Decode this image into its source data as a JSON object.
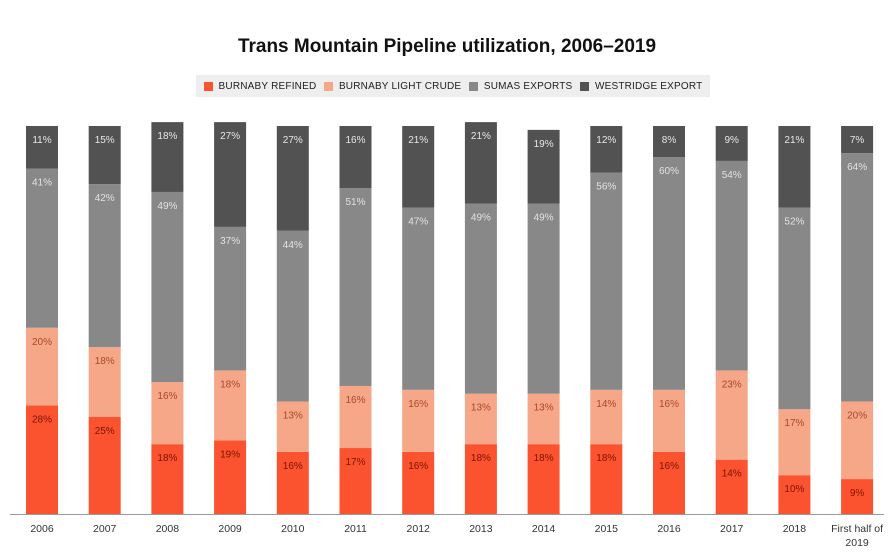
{
  "chart_data": {
    "type": "bar",
    "stacked": true,
    "title": "Trans Mountain Pipeline utilization, 2006–2019",
    "legend_position": "top-center",
    "grid": false,
    "ylim": [
      0,
      100
    ],
    "categories": [
      "2006",
      "2007",
      "2008",
      "2009",
      "2010",
      "2011",
      "2012",
      "2013",
      "2014",
      "2015",
      "2016",
      "2017",
      "2018",
      "First half of 2019"
    ],
    "series": [
      {
        "name": "BURNABY REFINED",
        "color": "#fb5230",
        "values": [
          28,
          25,
          18,
          19,
          16,
          17,
          16,
          18,
          18,
          18,
          16,
          14,
          10,
          9
        ]
      },
      {
        "name": "BURNABY LIGHT CRUDE",
        "color": "#f6a788",
        "values": [
          20,
          18,
          16,
          18,
          13,
          16,
          16,
          13,
          13,
          14,
          16,
          23,
          17,
          20
        ]
      },
      {
        "name": "SUMAS EXPORTS",
        "color": "#888888",
        "values": [
          41,
          42,
          49,
          37,
          44,
          51,
          47,
          49,
          49,
          56,
          60,
          54,
          52,
          64
        ]
      },
      {
        "name": "WESTRIDGE EXPORT",
        "color": "#525252",
        "values": [
          11,
          15,
          18,
          27,
          27,
          16,
          21,
          21,
          19,
          12,
          8,
          9,
          21,
          7
        ]
      }
    ]
  }
}
